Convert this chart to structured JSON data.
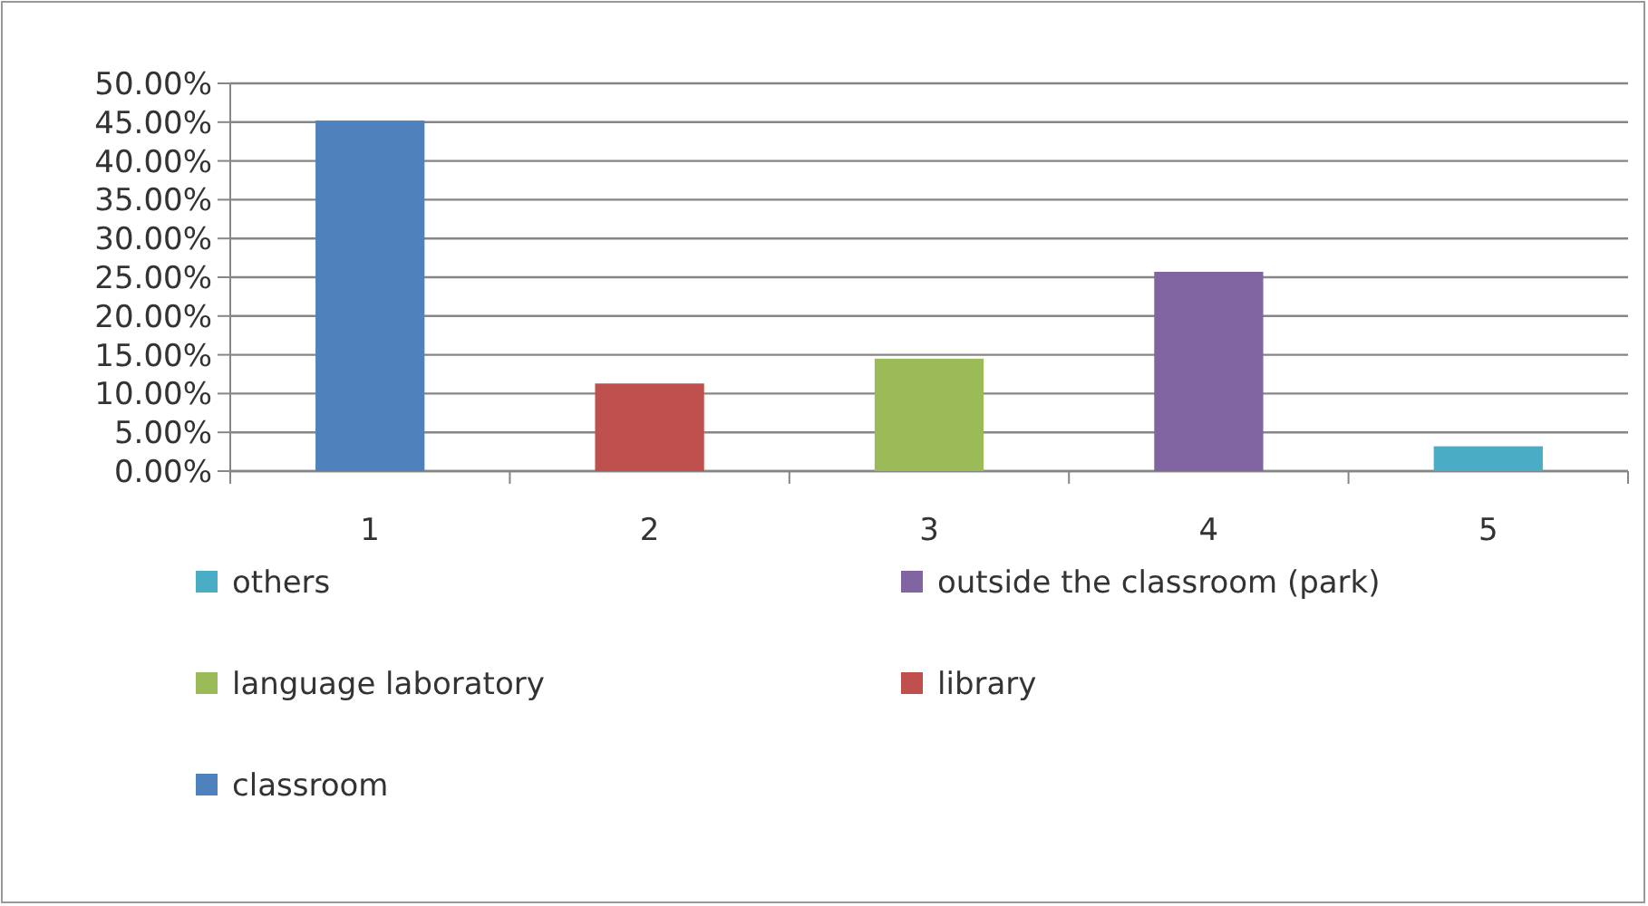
{
  "chart_data": {
    "type": "bar",
    "categories": [
      "1",
      "2",
      "3",
      "4",
      "5"
    ],
    "series": [
      {
        "name": "others",
        "color": "#4bacc6",
        "values": [
          null,
          null,
          null,
          null,
          3.2
        ]
      },
      {
        "name": "outside the classroom (park)",
        "color": "#8064a2",
        "values": [
          null,
          null,
          null,
          25.7,
          null
        ]
      },
      {
        "name": "language laboratory",
        "color": "#9bbb59",
        "values": [
          null,
          null,
          14.5,
          null,
          null
        ]
      },
      {
        "name": "library",
        "color": "#c0504d",
        "values": [
          null,
          11.3,
          null,
          null,
          null
        ]
      },
      {
        "name": "classroom",
        "color": "#4f81bd",
        "values": [
          45.2,
          null,
          null,
          null,
          null
        ]
      }
    ],
    "ylim": [
      0,
      50
    ],
    "yticks": [
      {
        "value": 0,
        "label": "0.00%"
      },
      {
        "value": 5,
        "label": "5.00%"
      },
      {
        "value": 10,
        "label": "10.00%"
      },
      {
        "value": 15,
        "label": "15.00%"
      },
      {
        "value": 20,
        "label": "20.00%"
      },
      {
        "value": 25,
        "label": "25.00%"
      },
      {
        "value": 30,
        "label": "30.00%"
      },
      {
        "value": 35,
        "label": "35.00%"
      },
      {
        "value": 40,
        "label": "40.00%"
      },
      {
        "value": 45,
        "label": "45.00%"
      },
      {
        "value": 50,
        "label": "50.00%"
      }
    ],
    "grid": "y",
    "legend": "bottom"
  }
}
